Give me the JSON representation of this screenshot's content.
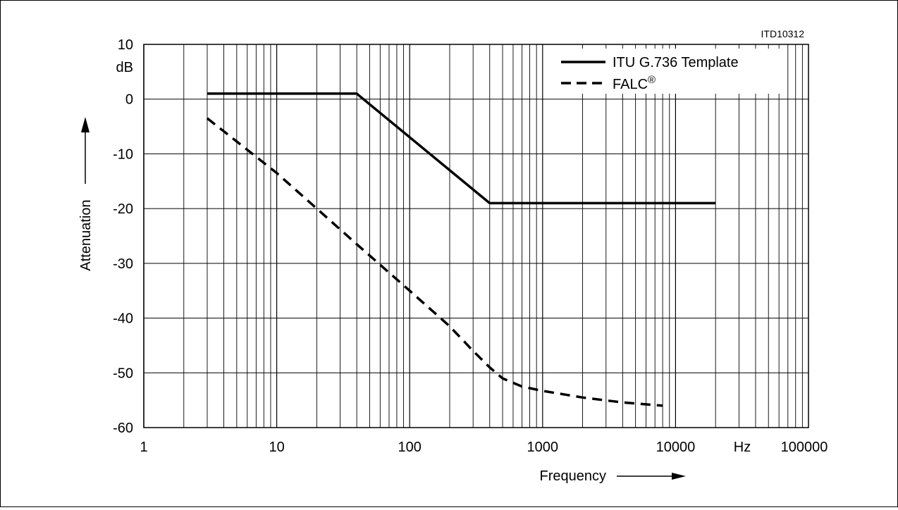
{
  "chart_data": {
    "type": "line",
    "code": "ITD10312",
    "xlabel": "Frequency",
    "ylabel": "Attenuation",
    "x_scale": "log",
    "xlim": [
      1,
      100000
    ],
    "ylim": [
      -60,
      10
    ],
    "y_unit": "dB",
    "x_unit": "Hz",
    "x_tick_labels": [
      "1",
      "10",
      "100",
      "1000",
      "10000",
      "Hz",
      "100000"
    ],
    "y_ticks": [
      10,
      0,
      -10,
      -20,
      -30,
      -40,
      -50,
      -60
    ],
    "y_tick_labels": [
      "10",
      "0",
      "-10",
      "-20",
      "-30",
      "-40",
      "-50",
      "-60"
    ],
    "grid": true,
    "legend_position": "top-right",
    "colors": {
      "line": "#000000",
      "grid": "#000000",
      "background": "#ffffff"
    },
    "series": [
      {
        "name": "ITU G.736 Template",
        "style": "solid",
        "points": [
          [
            3,
            1
          ],
          [
            40,
            1
          ],
          [
            400,
            -19
          ],
          [
            20000,
            -19
          ]
        ]
      },
      {
        "name": "FALC",
        "name_mark": "®",
        "style": "dashed",
        "points": [
          [
            3,
            -3.5
          ],
          [
            10,
            -13.5
          ],
          [
            20,
            -20
          ],
          [
            40,
            -26.5
          ],
          [
            100,
            -35
          ],
          [
            200,
            -41.5
          ],
          [
            300,
            -46
          ],
          [
            400,
            -49
          ],
          [
            500,
            -51
          ],
          [
            700,
            -52.5
          ],
          [
            1000,
            -53.3
          ],
          [
            2000,
            -54.5
          ],
          [
            4000,
            -55.4
          ],
          [
            8000,
            -56
          ]
        ]
      }
    ]
  }
}
